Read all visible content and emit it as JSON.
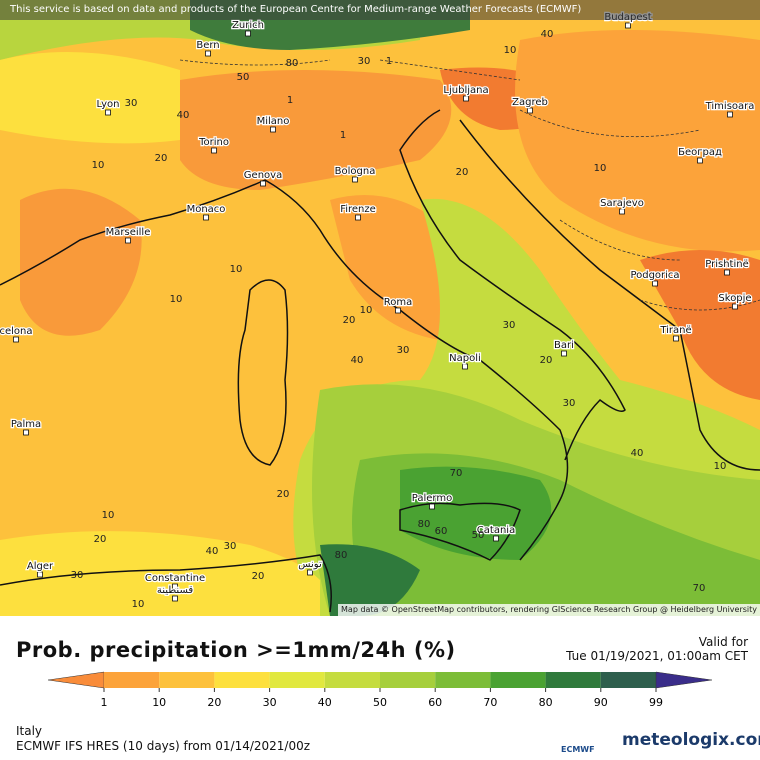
{
  "notice": "This service is based on data and products of the European Centre for Medium-range Weather Forecasts (ECMWF)",
  "attribution": "Map data © OpenStreetMap contributors, rendering GIScience Research Group @ Heidelberg University",
  "title": "Prob. precipitation >=1mm/24h (%)",
  "valid_label": "Valid for",
  "valid_time": "Tue 01/19/2021, 01:00am CET",
  "region": "Italy",
  "model_run": "ECMWF IFS HRES (10 days) from 01/14/2021/00z",
  "logo_left": "ECMWF",
  "logo_right": "meteologix.com",
  "cities": [
    "Budapest",
    "Bern",
    "Zurich",
    "Lyon",
    "Ljubljana",
    "Zagreb",
    "Timisoara",
    "Milano",
    "Torino",
    "Bologna",
    "Београд",
    "Genova",
    "Monaco",
    "Firenze",
    "Sarajevo",
    "Marseille",
    "Podgorica",
    "Prishtinë",
    "Roma",
    "Skopje",
    "Tiranë",
    "celona",
    "Bari",
    "Napoli",
    "Palma",
    "Palermo",
    "Catania",
    "Alger",
    "Constantine",
    "قسنطينة",
    "تونس"
  ],
  "contour_labels": [
    10,
    40,
    30,
    1,
    80,
    50,
    40,
    30,
    1,
    10,
    20,
    1,
    20,
    10,
    10,
    10,
    20,
    10,
    30,
    40,
    30,
    20,
    30,
    40,
    10,
    20,
    70,
    80,
    60,
    50,
    10,
    20,
    40,
    30,
    80,
    30,
    10,
    20,
    70
  ],
  "legend": {
    "ticks": [
      1,
      10,
      20,
      30,
      40,
      50,
      60,
      70,
      80,
      90,
      99
    ],
    "colors": [
      "#f98c3a",
      "#fca33a",
      "#fdc13c",
      "#fde03e",
      "#e1e83f",
      "#c5dc3f",
      "#a6cf3c",
      "#7cbd37",
      "#4aa232",
      "#2f7a3c",
      "#2e5f4d",
      "#3a2d8a"
    ]
  }
}
